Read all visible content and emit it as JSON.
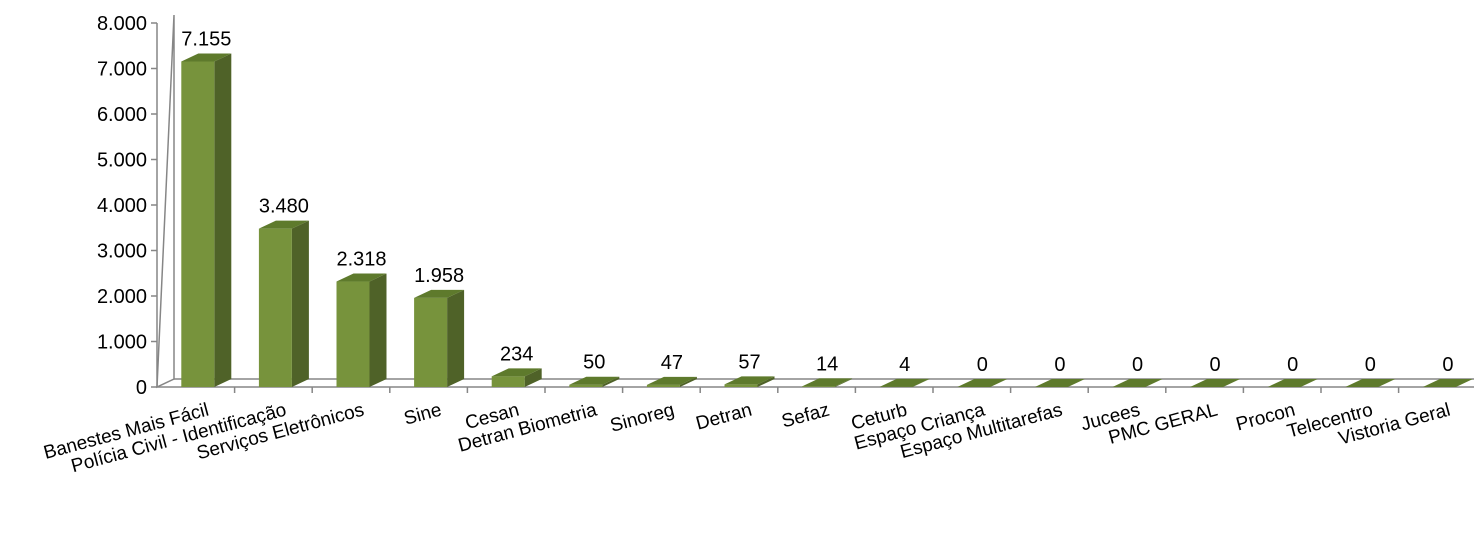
{
  "chart_data": {
    "type": "bar",
    "categories": [
      "Banestes Mais Fácil",
      "Polícia Civil - Identificação",
      "Serviços Eletrônicos",
      "Sine",
      "Cesan",
      "Detran Biometria",
      "Sinoreg",
      "Detran",
      "Sefaz",
      "Ceturb",
      "Espaço Criança",
      "Espaço Multitarefas",
      "Jucees",
      "PMC GERAL",
      "Procon",
      "Telecentro",
      "Vistoria Geral"
    ],
    "values": [
      7155,
      3480,
      2318,
      1958,
      234,
      50,
      47,
      57,
      14,
      4,
      0,
      0,
      0,
      0,
      0,
      0,
      0
    ],
    "data_labels": [
      "7.155",
      "3.480",
      "2.318",
      "1.958",
      "234",
      "50",
      "47",
      "57",
      "14",
      "4",
      "0",
      "0",
      "0",
      "0",
      "0",
      "0",
      "0"
    ],
    "yticks": [
      0,
      1000,
      2000,
      3000,
      4000,
      5000,
      6000,
      7000,
      8000
    ],
    "ytick_labels": [
      "0",
      "1.000",
      "2.000",
      "3.000",
      "4.000",
      "5.000",
      "6.000",
      "7.000",
      "8.000"
    ],
    "ylim": [
      0,
      8000
    ],
    "title": "",
    "xlabel": "",
    "ylabel": "",
    "grid": false,
    "legend": "none",
    "colors": {
      "front": "#77933c",
      "side": "#4f6228",
      "top": "#5e7a2c",
      "axis": "#868686"
    }
  }
}
